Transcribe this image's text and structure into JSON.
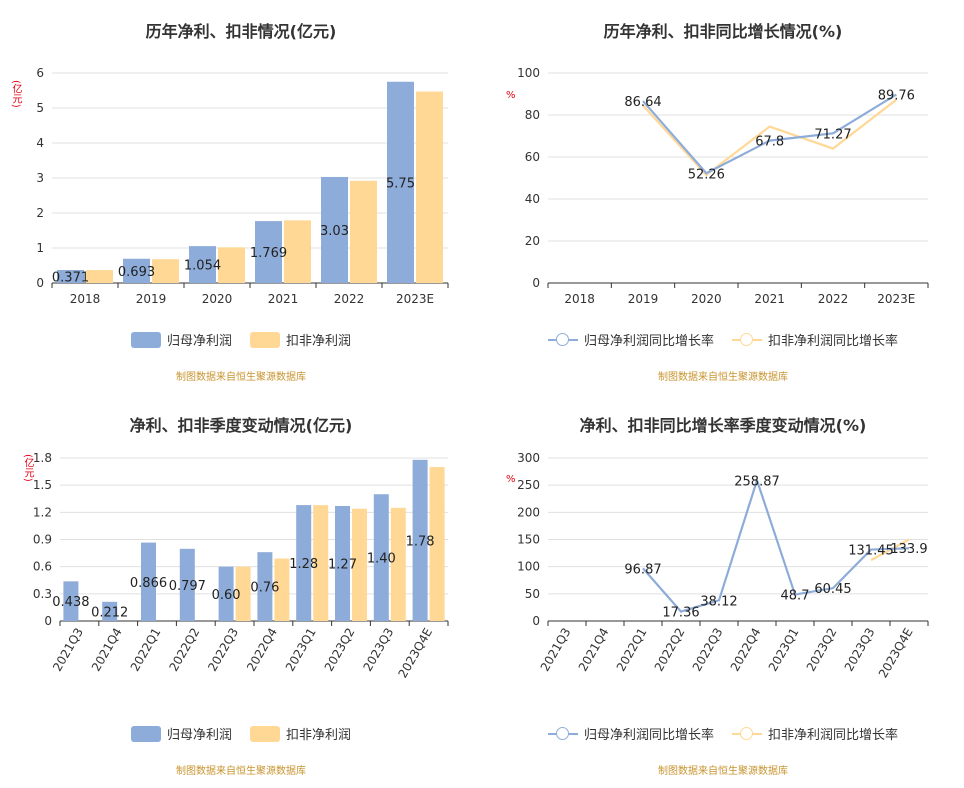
{
  "colors": {
    "primary": "#8eacd9",
    "secondary": "#ffd896",
    "unit": "#e60012",
    "source": "#c8942f"
  },
  "chart_data": [
    {
      "type": "bar",
      "title": "历年净利、扣非情况(亿元)",
      "unit_label": "(亿元)",
      "categories": [
        "2018",
        "2019",
        "2020",
        "2021",
        "2022",
        "2023E"
      ],
      "series": [
        {
          "name": "归母净利润",
          "values": [
            0.371,
            0.693,
            1.054,
            1.769,
            3.03,
            5.75
          ]
        },
        {
          "name": "扣非净利润",
          "values": [
            0.37,
            0.68,
            1.02,
            1.79,
            2.92,
            5.47
          ]
        }
      ],
      "data_labels": [
        "0.371",
        "0.693",
        "1.054",
        "1.769",
        "3.03",
        "5.75"
      ],
      "ylim": [
        0,
        6
      ],
      "yticks": [
        "0",
        "1",
        "2",
        "3",
        "4",
        "5",
        "6"
      ],
      "grid": true,
      "legend": "bottom",
      "source": "制图数据来自恒生聚源数据库"
    },
    {
      "type": "line",
      "title": "历年净利、扣非同比增长情况(%)",
      "unit_label": "%",
      "categories": [
        "2018",
        "2019",
        "2020",
        "2021",
        "2022",
        "2023E"
      ],
      "series": [
        {
          "name": "归母净利润同比增长率",
          "values": [
            null,
            86.64,
            52.26,
            67.8,
            71.27,
            89.76
          ]
        },
        {
          "name": "扣非净利润同比增长率",
          "values": [
            null,
            84.5,
            51.5,
            74.5,
            64.0,
            87.3
          ]
        }
      ],
      "data_labels": [
        "",
        "86.64",
        "52.26",
        "67.8",
        "71.27",
        "89.76"
      ],
      "ylim": [
        0,
        100
      ],
      "yticks": [
        "0",
        "20",
        "40",
        "60",
        "80",
        "100"
      ],
      "grid": true,
      "legend": "bottom",
      "source": "制图数据来自恒生聚源数据库"
    },
    {
      "type": "bar",
      "title": "净利、扣非季度变动情况(亿元)",
      "unit_label": "(亿元)",
      "categories": [
        "2021Q3",
        "2021Q4",
        "2022Q1",
        "2022Q2",
        "2022Q3",
        "2022Q4",
        "2023Q1",
        "2023Q2",
        "2023Q3",
        "2023Q4E"
      ],
      "series": [
        {
          "name": "归母净利润",
          "values": [
            0.438,
            0.212,
            0.866,
            0.797,
            0.6,
            0.76,
            1.28,
            1.27,
            1.4,
            1.78
          ]
        },
        {
          "name": "扣非净利润",
          "values": [
            null,
            null,
            null,
            null,
            0.6,
            0.69,
            1.28,
            1.24,
            1.25,
            1.7
          ]
        }
      ],
      "data_labels": [
        "0.438",
        "0.212",
        "0.866",
        "0.797",
        "0.60",
        "0.76",
        "1.28",
        "1.27",
        "1.40",
        "1.78"
      ],
      "ylim": [
        0,
        1.8
      ],
      "yticks": [
        "0",
        "0.3",
        "0.6",
        "0.9",
        "1.2",
        "1.5",
        "1.8"
      ],
      "grid": true,
      "legend": "bottom",
      "source": "制图数据来自恒生聚源数据库"
    },
    {
      "type": "line",
      "title": "净利、扣非同比增长率季度变动情况(%)",
      "unit_label": "%",
      "categories": [
        "2021Q3",
        "2021Q4",
        "2022Q1",
        "2022Q2",
        "2022Q3",
        "2022Q4",
        "2023Q1",
        "2023Q2",
        "2023Q3",
        "2023Q4E"
      ],
      "series": [
        {
          "name": "归母净利润同比增长率",
          "values": [
            null,
            null,
            96.87,
            17.36,
            38.12,
            258.87,
            48.7,
            60.45,
            131.45,
            133.9
          ]
        },
        {
          "name": "扣非净利润同比增长率",
          "values": [
            null,
            null,
            null,
            null,
            null,
            null,
            null,
            null,
            112.0,
            150.0
          ]
        }
      ],
      "data_labels": [
        "",
        "",
        "96.87",
        "17.36",
        "38.12",
        "258.87",
        "48.7",
        "60.45",
        "131.45",
        "133.9"
      ],
      "ylim": [
        0,
        300
      ],
      "yticks": [
        "0",
        "50",
        "100",
        "150",
        "200",
        "250",
        "300"
      ],
      "grid": true,
      "legend": "bottom",
      "source": "制图数据来自恒生聚源数据库"
    }
  ]
}
